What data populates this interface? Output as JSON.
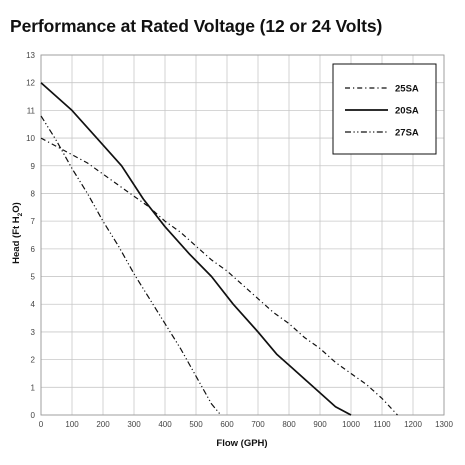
{
  "chart_data": {
    "type": "line",
    "title": "Performance at Rated Voltage (12 or 24 Volts)",
    "xlabel": "Flow (GPH)",
    "ylabel": "Head (Ft H2O)",
    "ylabel_main": "Head (Ft H",
    "ylabel_sub": "2",
    "ylabel_tail": "O)",
    "xlim": [
      0,
      1300
    ],
    "ylim": [
      0,
      13
    ],
    "xticks": [
      "0",
      "100",
      "200",
      "300",
      "400",
      "500",
      "600",
      "700",
      "800",
      "900",
      "1000",
      "1100",
      "1200",
      "1300"
    ],
    "yticks": [
      "0",
      "1",
      "2",
      "3",
      "4",
      "5",
      "6",
      "7",
      "8",
      "9",
      "10",
      "11",
      "12",
      "13"
    ],
    "grid": true,
    "legend_position": "top-right",
    "series": [
      {
        "name": "25SA",
        "line_style": "dash-dot",
        "x": [
          0,
          50,
          100,
          150,
          200,
          250,
          300,
          350,
          400,
          450,
          500,
          550,
          600,
          650,
          700,
          750,
          800,
          850,
          900,
          950,
          1000,
          1050,
          1100,
          1150
        ],
        "y": [
          10.0,
          9.7,
          9.4,
          9.1,
          8.7,
          8.3,
          7.9,
          7.5,
          7.0,
          6.6,
          6.1,
          5.6,
          5.2,
          4.7,
          4.2,
          3.7,
          3.3,
          2.8,
          2.4,
          1.9,
          1.5,
          1.1,
          0.6,
          0.0
        ]
      },
      {
        "name": "20SA",
        "line_style": "solid",
        "x": [
          0,
          100,
          180,
          260,
          330,
          400,
          480,
          550,
          620,
          700,
          760,
          810,
          860,
          910,
          950,
          1000
        ],
        "y": [
          12.0,
          11.0,
          10.0,
          9.0,
          7.8,
          6.8,
          5.8,
          5.0,
          4.0,
          3.0,
          2.2,
          1.7,
          1.2,
          0.7,
          0.3,
          0.0
        ]
      },
      {
        "name": "27SA",
        "line_style": "dash-dot-dot",
        "x": [
          0,
          50,
          100,
          150,
          200,
          250,
          300,
          350,
          400,
          450,
          500,
          550,
          580
        ],
        "y": [
          10.8,
          9.9,
          8.9,
          8.0,
          7.0,
          6.1,
          5.1,
          4.2,
          3.3,
          2.4,
          1.4,
          0.4,
          0.0
        ]
      }
    ]
  }
}
